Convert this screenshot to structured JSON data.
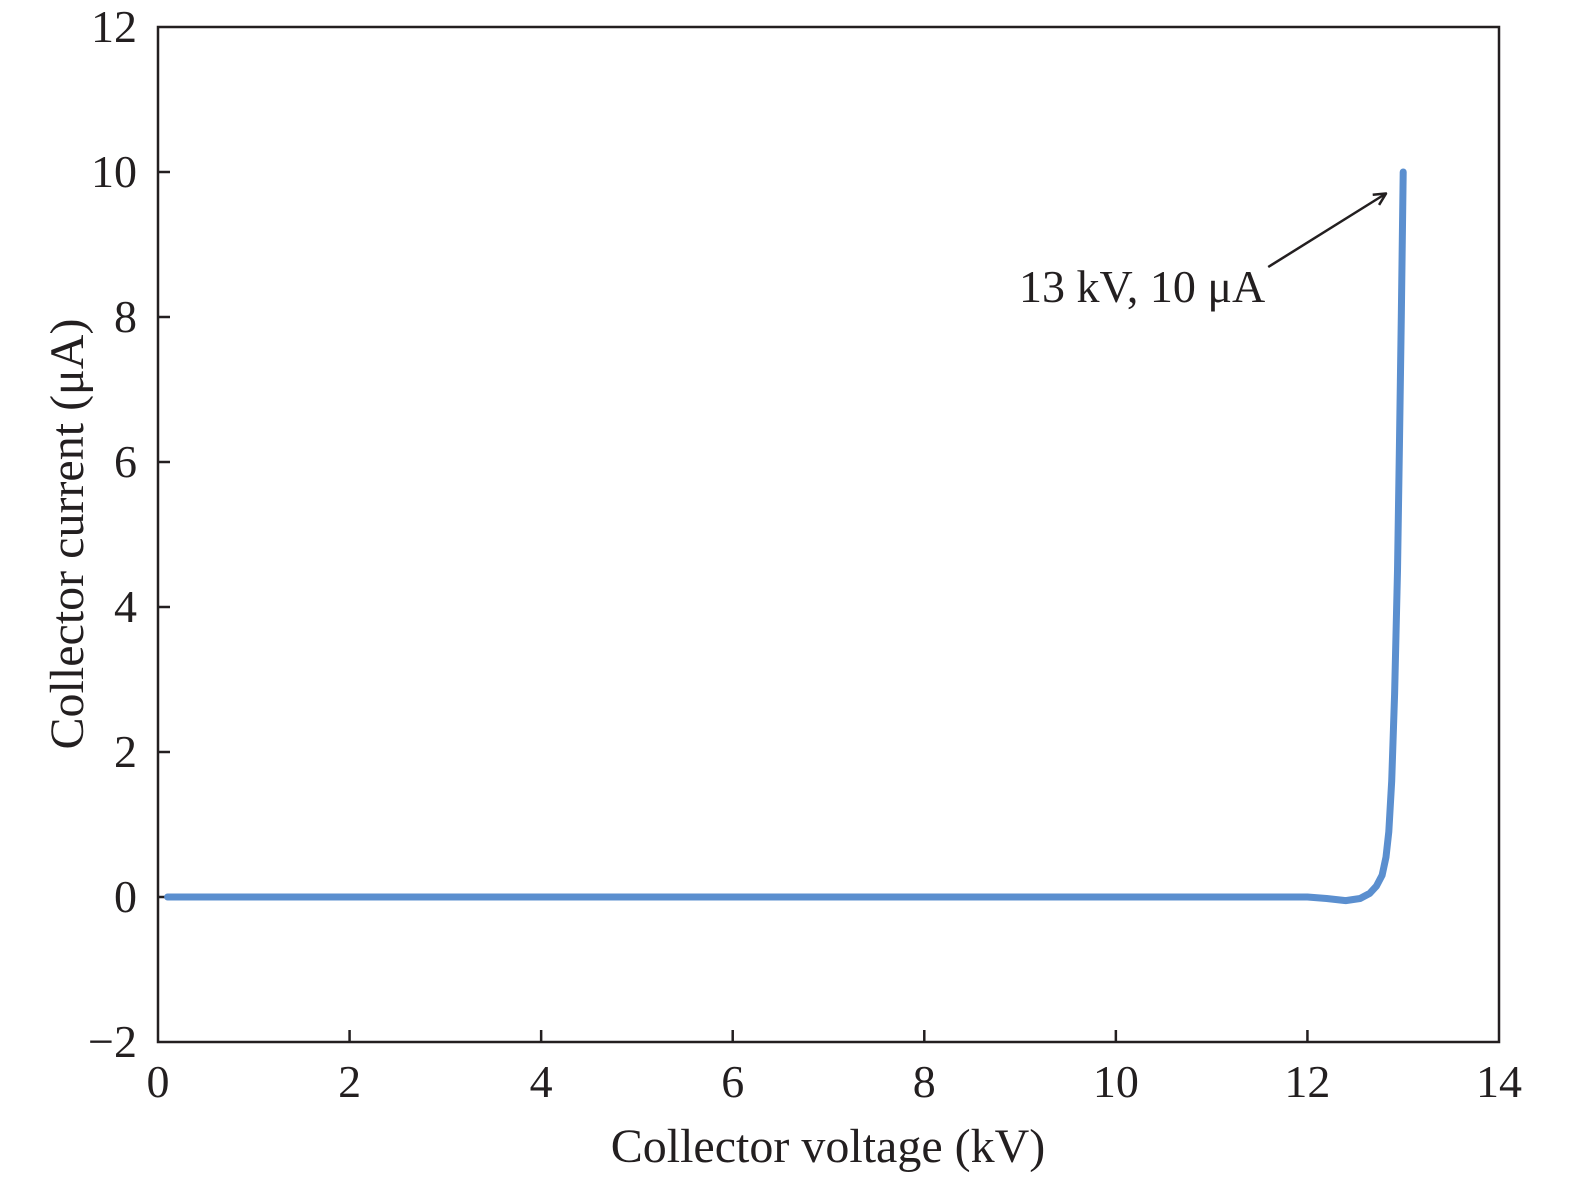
{
  "chart_data": {
    "type": "line",
    "title": "",
    "xlabel": "Collector voltage (kV)",
    "ylabel": "Collector current (μA)",
    "xlim": [
      0,
      14
    ],
    "ylim": [
      -2,
      12
    ],
    "x_ticks": [
      "0",
      "2",
      "4",
      "6",
      "8",
      "10",
      "12",
      "14"
    ],
    "y_ticks": [
      "−2",
      "0",
      "2",
      "4",
      "6",
      "8",
      "10",
      "12"
    ],
    "grid": false,
    "legend": "none",
    "series": [
      {
        "color": "#5b8fcf",
        "x": [
          0.1,
          2,
          4,
          6,
          8,
          10,
          12,
          12.2,
          12.4,
          12.55,
          12.65,
          12.72,
          12.78,
          12.82,
          12.85,
          12.88,
          12.91,
          12.94,
          12.96,
          12.98,
          13.0
        ],
        "y": [
          0,
          0,
          0,
          0,
          0,
          0,
          0,
          -0.02,
          -0.05,
          -0.02,
          0.05,
          0.15,
          0.3,
          0.55,
          0.9,
          1.6,
          2.8,
          4.5,
          6.2,
          8.0,
          10.0
        ]
      }
    ],
    "annotations": [
      {
        "text": "13 kV, 10 μA",
        "points_to": [
          13,
          10
        ]
      }
    ]
  }
}
